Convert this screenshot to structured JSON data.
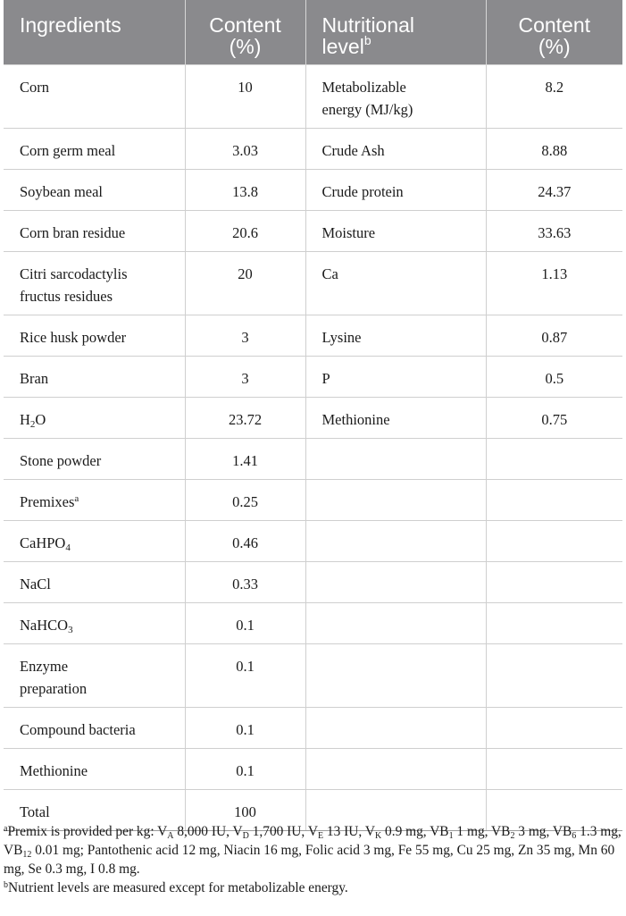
{
  "header": {
    "col1": "Ingredients",
    "col2_line1": "Content",
    "col2_line2": "(%)",
    "col3_line1": "Nutritional",
    "col3_line2": "level",
    "col3_sup": "b",
    "col4_line1": "Content",
    "col4_line2": "(%)"
  },
  "rows": [
    {
      "ing": "Corn",
      "ing_content": "10",
      "nut_line1": "Metabolizable",
      "nut_line2": "energy (MJ/kg)",
      "nut_content": "8.2"
    },
    {
      "ing": "Corn germ meal",
      "ing_content": "3.03",
      "nut": "Crude Ash",
      "nut_content": "8.88"
    },
    {
      "ing": "Soybean meal",
      "ing_content": "13.8",
      "nut": "Crude protein",
      "nut_content": "24.37"
    },
    {
      "ing": "Corn bran residue",
      "ing_content": "20.6",
      "nut": "Moisture",
      "nut_content": "33.63"
    },
    {
      "ing_line1": "Citri sarcodactylis",
      "ing_line2": "fructus residues",
      "ing_content": "20",
      "nut": "Ca",
      "nut_content": "1.13"
    },
    {
      "ing": "Rice husk powder",
      "ing_content": "3",
      "nut": "Lysine",
      "nut_content": "0.87"
    },
    {
      "ing": "Bran",
      "ing_content": "3",
      "nut": "P",
      "nut_content": "0.5"
    },
    {
      "ing_main": "H",
      "ing_sub": "2",
      "ing_tail": "O",
      "ing_content": "23.72",
      "nut": "Methionine",
      "nut_content": "0.75"
    },
    {
      "ing": "Stone powder",
      "ing_content": "1.41"
    },
    {
      "ing_main": "Premixes",
      "ing_sup": "a",
      "ing_content": "0.25"
    },
    {
      "ing_main": "CaHPO",
      "ing_sub": "4",
      "ing_content": "0.46"
    },
    {
      "ing": "NaCl",
      "ing_content": "0.33"
    },
    {
      "ing_main": "NaHCO",
      "ing_sub": "3",
      "ing_content": "0.1"
    },
    {
      "ing_line1": "Enzyme",
      "ing_line2": "preparation",
      "ing_content": "0.1"
    },
    {
      "ing": "Compound bacteria",
      "ing_content": "0.1"
    },
    {
      "ing": "Methionine",
      "ing_content": "0.1"
    },
    {
      "ing": "Total",
      "ing_content": "100"
    }
  ],
  "footnotes": {
    "a_mark": "a",
    "a_parts": {
      "p1": "Premix is provided per kg: V",
      "s1": "A",
      "p2": " 8,000 IU, V",
      "s2": "D",
      "p3": " 1,700 IU, V",
      "s3": "E",
      "p4": " 13 IU, V",
      "s4": "K",
      "p5": " 0.9 mg, VB",
      "s5": "1",
      "p6": " 1 mg, VB",
      "s6": "2",
      "p7": " 3 mg, VB",
      "s7": "6",
      "p8": " 1.3 mg, VB",
      "s8": "12",
      "p9": " 0.01 mg; Pantothenic acid 12 mg, Niacin 16 mg, Folic acid 3 mg, Fe 55 mg, Cu 25 mg, Zn 35 mg, Mn 60 mg, Se 0.3 mg, I 0.8 mg."
    },
    "b_mark": "b",
    "b_text": "Nutrient levels are measured except for metabolizable energy."
  }
}
